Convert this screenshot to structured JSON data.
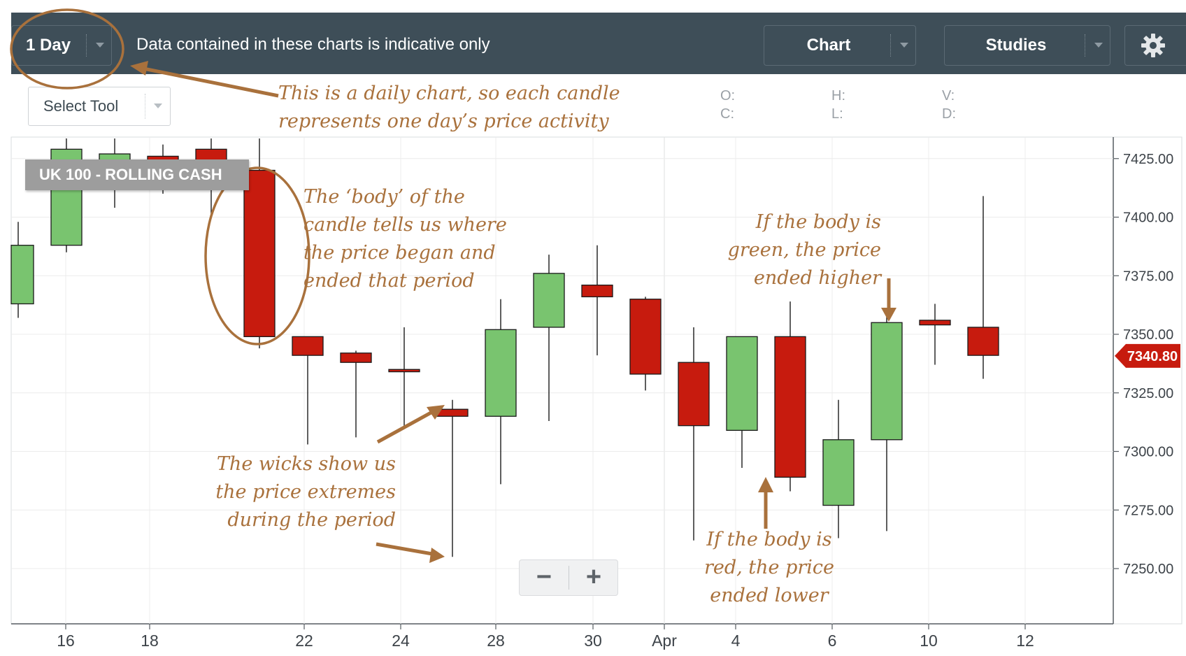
{
  "toolbar": {
    "period_label": "1 Day",
    "disclaimer": "Data contained in these charts is indicative only",
    "chart_label": "Chart",
    "studies_label": "Studies",
    "settings_icon": "gear-icon",
    "background": "#3e4e58"
  },
  "select_tool": {
    "label": "Select Tool"
  },
  "ohlc": {
    "o": "O:",
    "c": "C:",
    "h": "H:",
    "l": "L:",
    "v": "V:",
    "d": "D:"
  },
  "instrument_label": "UK 100 - ROLLING CASH",
  "annotations": {
    "daily_1": "This is a daily chart, so each candle",
    "daily_2": "represents one day’s price activity",
    "body_1": "The ‘body’ of the",
    "body_2": "candle tells us where",
    "body_3": "the price began and",
    "body_4": "ended that period",
    "green_1": "If the body is",
    "green_2": "green, the price",
    "green_3": "ended higher",
    "wicks_1": "The wicks show us",
    "wicks_2": "the price extremes",
    "wicks_3": "during the period",
    "red_1": "If the body is",
    "red_2": "red, the price",
    "red_3": "ended lower"
  },
  "zoom": {
    "minus": "−",
    "plus": "+"
  },
  "colors": {
    "up": "#79c46f",
    "down": "#c71b0e",
    "annotation": "#a9713c",
    "price_tag": "#c71b0e"
  },
  "chart_data": {
    "type": "candlestick",
    "ylim": [
      7235,
      7434
    ],
    "y_ticks": [
      7425,
      7400,
      7375,
      7350,
      7325,
      7300,
      7275,
      7250
    ],
    "y_tick_labels": [
      "7425.00",
      "7400.00",
      "7375.00",
      "7350.00",
      "7325.00",
      "7300.00",
      "7275.00",
      "7250.00"
    ],
    "x_tick_labels": [
      "16",
      "18",
      "22",
      "24",
      "28",
      "30",
      "Apr",
      "4",
      "6",
      "10",
      "12"
    ],
    "last_price": 7340.8,
    "last_price_label": "7340.80",
    "candles": [
      {
        "open": 7363,
        "high": 7398,
        "low": 7357,
        "close": 7388
      },
      {
        "open": 7388,
        "high": 7434,
        "low": 7385,
        "close": 7429
      },
      {
        "open": 7420,
        "high": 7434,
        "low": 7404,
        "close": 7427
      },
      {
        "open": 7426,
        "high": 7431,
        "low": 7410,
        "close": 7423
      },
      {
        "open": 7429,
        "high": 7434,
        "low": 7401,
        "close": 7424
      },
      {
        "open": 7420,
        "high": 7434,
        "low": 7344,
        "close": 7349
      },
      {
        "open": 7349,
        "high": 7349,
        "low": 7303,
        "close": 7341
      },
      {
        "open": 7342,
        "high": 7343,
        "low": 7306,
        "close": 7338
      },
      {
        "open": 7335,
        "high": 7353,
        "low": 7310,
        "close": 7334
      },
      {
        "open": 7318,
        "high": 7322,
        "low": 7255,
        "close": 7315
      },
      {
        "open": 7315,
        "high": 7365,
        "low": 7286,
        "close": 7352
      },
      {
        "open": 7353,
        "high": 7384,
        "low": 7313,
        "close": 7376
      },
      {
        "open": 7371,
        "high": 7388,
        "low": 7341,
        "close": 7366
      },
      {
        "open": 7365,
        "high": 7366,
        "low": 7326,
        "close": 7333
      },
      {
        "open": 7338,
        "high": 7353,
        "low": 7262,
        "close": 7311
      },
      {
        "open": 7309,
        "high": 7349,
        "low": 7293,
        "close": 7349
      },
      {
        "open": 7349,
        "high": 7364,
        "low": 7283,
        "close": 7289
      },
      {
        "open": 7277,
        "high": 7322,
        "low": 7263,
        "close": 7305
      },
      {
        "open": 7305,
        "high": 7359,
        "low": 7266,
        "close": 7355
      },
      {
        "open": 7356,
        "high": 7363,
        "low": 7337,
        "close": 7354
      },
      {
        "open": 7353,
        "high": 7409,
        "low": 7331,
        "close": 7341
      }
    ]
  }
}
